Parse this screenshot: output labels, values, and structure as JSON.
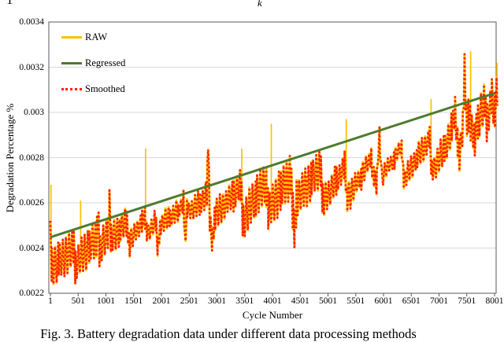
{
  "page": {
    "fragment_left": "1",
    "fragment_center": "k",
    "caption": "Fig. 3. Battery degradation data under different data processing methods"
  },
  "chart_data": {
    "type": "line",
    "title": "",
    "xlabel": "Cycle Number",
    "ylabel": "Degradation Percentage %",
    "x_ticks": [
      "1",
      "501",
      "1001",
      "1501",
      "2001",
      "2501",
      "3001",
      "3501",
      "4001",
      "4501",
      "5001",
      "5501",
      "6001",
      "6501",
      "7001",
      "7501",
      "8001"
    ],
    "y_ticks": [
      "0.0034",
      "0.0032",
      "0.003",
      "0.0028",
      "0.0026",
      "0.0024",
      "0.0022"
    ],
    "xlim": [
      1,
      8060
    ],
    "ylim": [
      0.0022,
      0.0034
    ],
    "grid": true,
    "legend_position": "top-left-inside",
    "colors": {
      "raw": "#FFC000",
      "regressed": "#4E7B2E",
      "smoothed": "#FF1E00",
      "grid": "#D9D9D9",
      "axis": "#595959",
      "text": "#000000"
    },
    "legend": [
      {
        "label": "RAW",
        "series": "raw",
        "style": "solid"
      },
      {
        "label": "Regressed",
        "series": "regressed",
        "style": "solid"
      },
      {
        "label": "Smoothed",
        "series": "smoothed",
        "style": "dotted"
      }
    ],
    "series": {
      "regressed": {
        "type": "linear",
        "points": [
          [
            1,
            0.002448
          ],
          [
            8001,
            0.003085
          ]
        ]
      },
      "smoothed": {
        "type": "zigzag_band",
        "band_half_amplitude": 7e-05,
        "zigzag_period_cycles": 56,
        "midline_points": [
          [
            1,
            0.00244
          ],
          [
            25,
            0.00232
          ],
          [
            150,
            0.00234
          ],
          [
            420,
            0.0024
          ],
          [
            450,
            0.00233
          ],
          [
            700,
            0.00241
          ],
          [
            830,
            0.00244
          ],
          [
            858,
            0.00256
          ],
          [
            885,
            0.00238
          ],
          [
            1040,
            0.00248
          ],
          [
            1062,
            0.00261
          ],
          [
            1090,
            0.00244
          ],
          [
            1250,
            0.00248
          ],
          [
            1380,
            0.00252
          ],
          [
            1420,
            0.00242
          ],
          [
            1650,
            0.00252
          ],
          [
            1705,
            0.00254
          ],
          [
            1735,
            0.00246
          ],
          [
            1900,
            0.00252
          ],
          [
            1932,
            0.0024
          ],
          [
            1975,
            0.0025
          ],
          [
            2150,
            0.00254
          ],
          [
            2300,
            0.00256
          ],
          [
            2398,
            0.00261
          ],
          [
            2425,
            0.00243
          ],
          [
            2460,
            0.00256
          ],
          [
            2700,
            0.0026
          ],
          [
            2820,
            0.00264
          ],
          [
            2842,
            0.00288
          ],
          [
            2872,
            0.00252
          ],
          [
            2915,
            0.00244
          ],
          [
            2960,
            0.00254
          ],
          [
            3300,
            0.00264
          ],
          [
            3430,
            0.00268
          ],
          [
            3465,
            0.00252
          ],
          [
            3700,
            0.00263
          ],
          [
            3890,
            0.00269
          ],
          [
            3925,
            0.00256
          ],
          [
            4150,
            0.00266
          ],
          [
            4330,
            0.00272
          ],
          [
            4365,
            0.00256
          ],
          [
            4398,
            0.00248
          ],
          [
            4435,
            0.00262
          ],
          [
            4700,
            0.0027
          ],
          [
            4870,
            0.00276
          ],
          [
            4905,
            0.0026
          ],
          [
            5150,
            0.0027
          ],
          [
            5300,
            0.00276
          ],
          [
            5345,
            0.00262
          ],
          [
            5600,
            0.00272
          ],
          [
            5780,
            0.0028
          ],
          [
            5828,
            0.00271
          ],
          [
            5875,
            0.00268
          ],
          [
            5928,
            0.0029
          ],
          [
            5965,
            0.00272
          ],
          [
            6200,
            0.0028
          ],
          [
            6330,
            0.00285
          ],
          [
            6365,
            0.0027
          ],
          [
            6600,
            0.0028
          ],
          [
            6830,
            0.00288
          ],
          [
            6875,
            0.00274
          ],
          [
            7100,
            0.00284
          ],
          [
            7230,
            0.00292
          ],
          [
            7290,
            0.003
          ],
          [
            7335,
            0.00288
          ],
          [
            7368,
            0.0028
          ],
          [
            7430,
            0.00292
          ],
          [
            7460,
            0.0032
          ],
          [
            7495,
            0.00296
          ],
          [
            7530,
            0.003
          ],
          [
            7570,
            0.00294
          ],
          [
            7640,
            0.00288
          ],
          [
            7700,
            0.00296
          ],
          [
            7820,
            0.00304
          ],
          [
            7862,
            0.00296
          ],
          [
            7950,
            0.00306
          ],
          [
            8010,
            0.003
          ],
          [
            8050,
            0.00312
          ]
        ]
      },
      "raw": {
        "type": "zigzag_band_with_spikes",
        "up_spikes": [
          [
            12,
            0.00268
          ],
          [
            545,
            0.00261
          ],
          [
            1715,
            0.00284
          ],
          [
            3448,
            0.00284
          ],
          [
            3980,
            0.00295
          ],
          [
            5330,
            0.00297
          ],
          [
            6858,
            0.00306
          ],
          [
            7570,
            0.00327
          ],
          [
            8045,
            0.00322
          ]
        ],
        "down_spikes": [
          [
            12,
            0.00226
          ],
          [
            1932,
            0.00236
          ]
        ]
      }
    }
  }
}
